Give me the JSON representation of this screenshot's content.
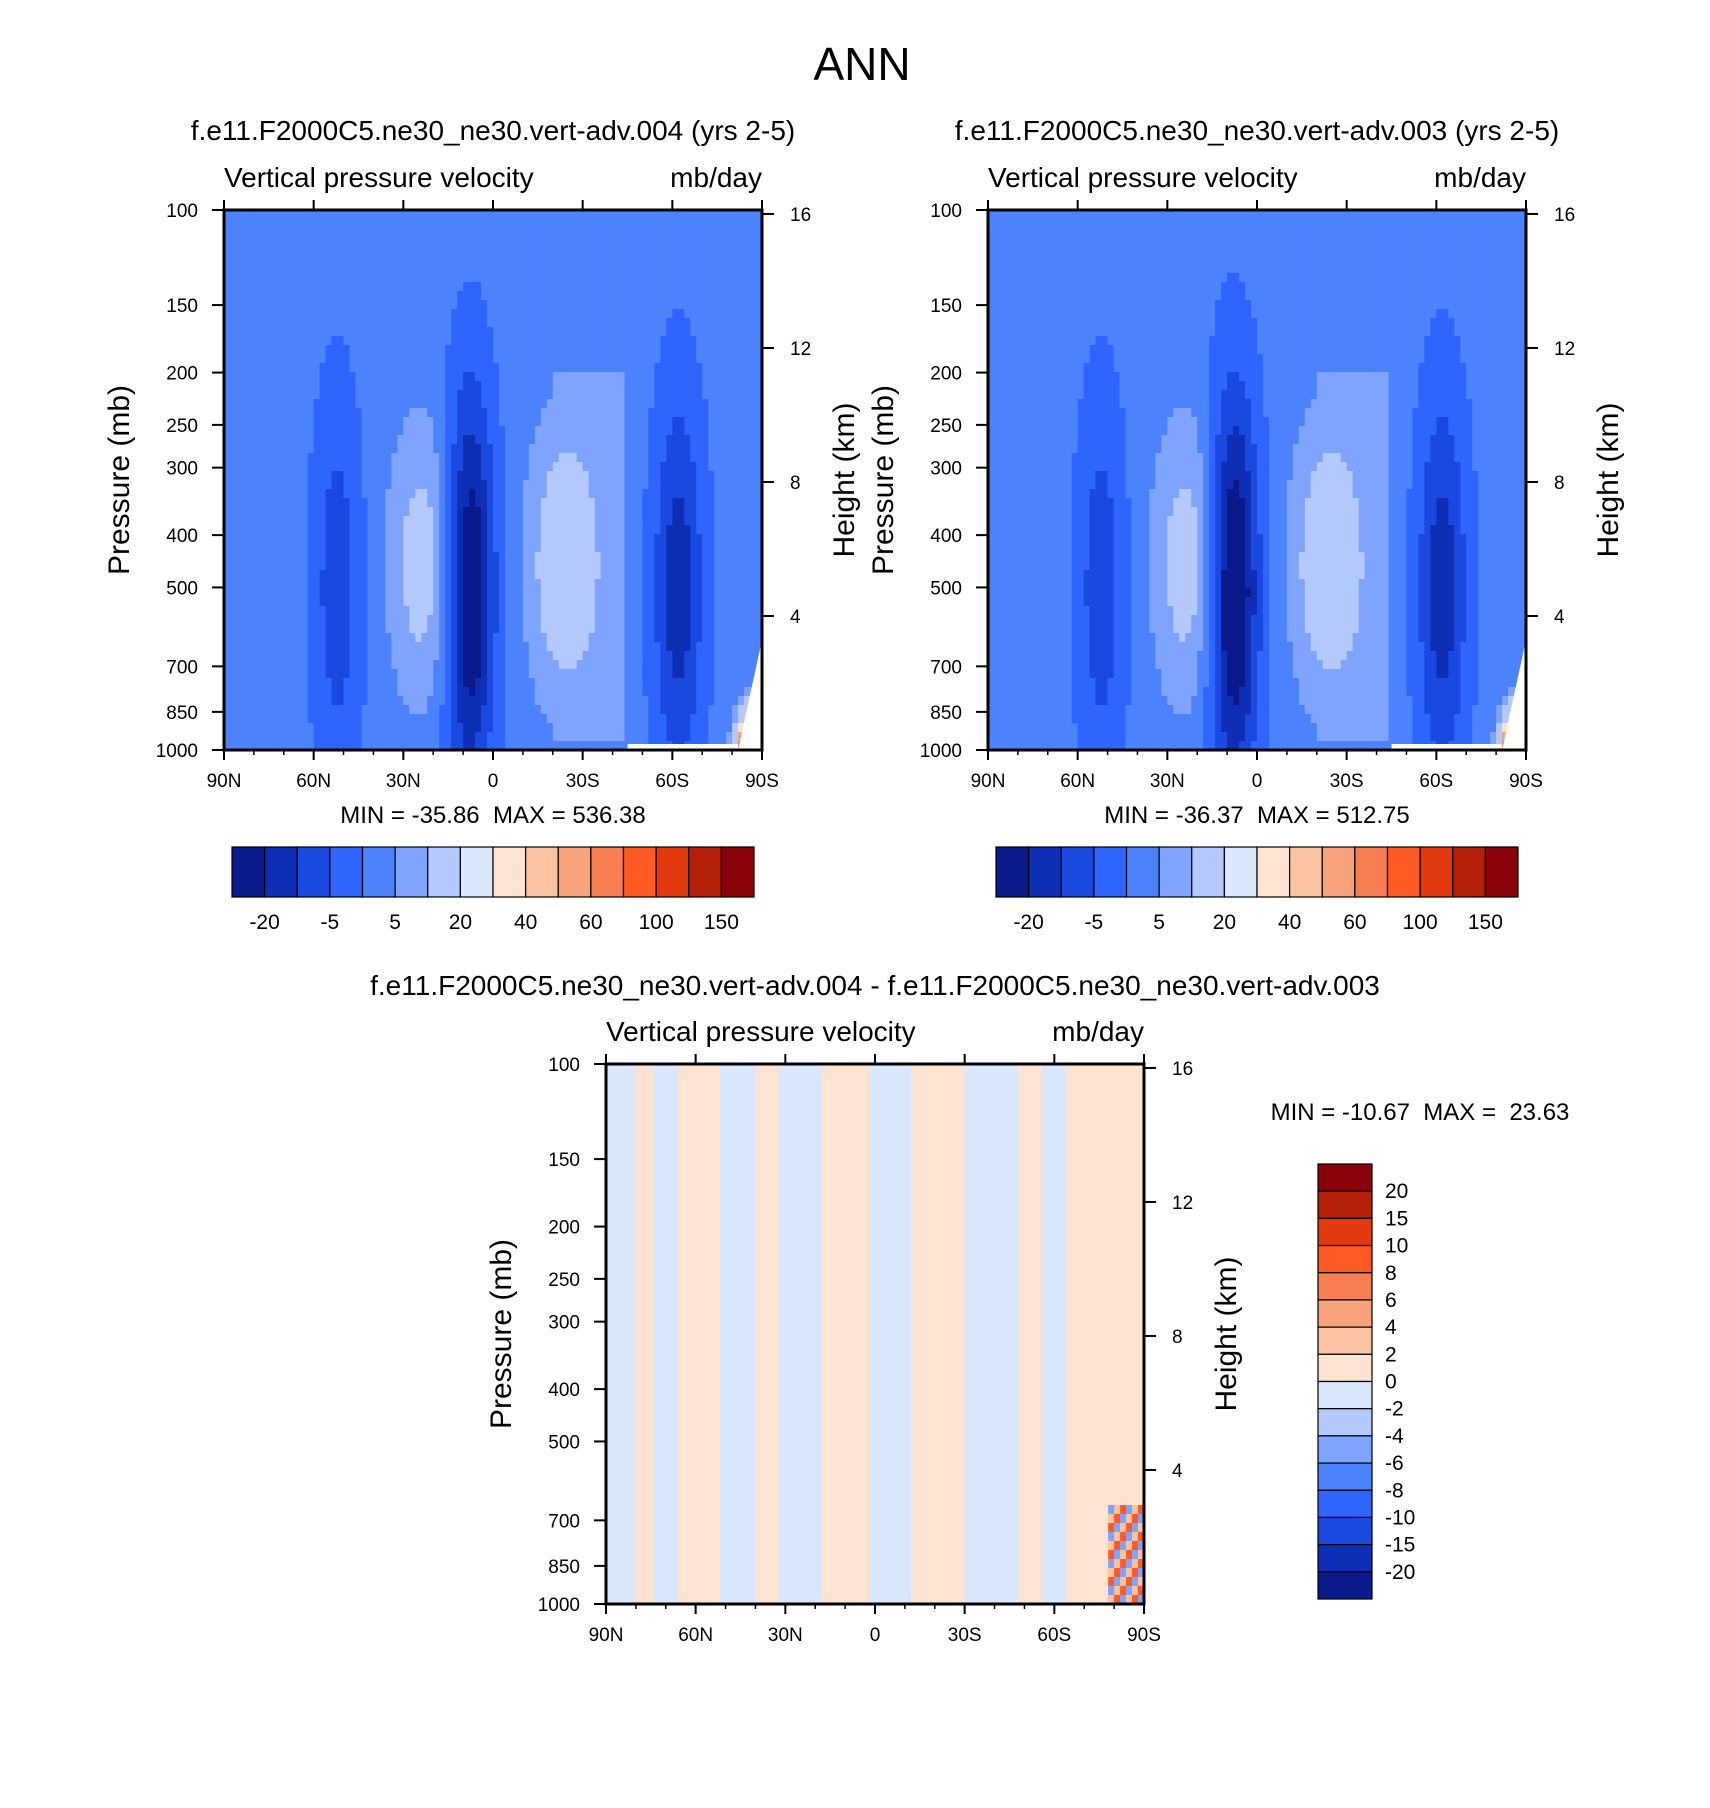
{
  "title": "ANN",
  "colors": {
    "blue_scale": [
      "#0a1a8c",
      "#0d2eb5",
      "#1a49e0",
      "#2e64ff",
      "#4d82ff",
      "#7fa4ff",
      "#b3c9ff",
      "#d9e8ff"
    ],
    "red_scale": [
      "#fde4d2",
      "#fbc3a2",
      "#f8a27c",
      "#f77e51",
      "#ff5a24",
      "#e2390e",
      "#b52008",
      "#8a0308"
    ]
  },
  "chart_data": [
    {
      "type": "heatmap",
      "title": "f.e11.F2000C5.ne30_ne30.vert-adv.004 (yrs 2-5)",
      "left_label": "Vertical pressure velocity",
      "right_label": "mb/day",
      "xlabel": "",
      "ylabel": "Pressure (mb)",
      "y2label": "Height (km)",
      "x_ticks": [
        "90N",
        "60N",
        "30N",
        "0",
        "30S",
        "60S",
        "90S"
      ],
      "y_ticks": [
        "100",
        "150",
        "200",
        "250",
        "300",
        "400",
        "500",
        "700",
        "850",
        "1000"
      ],
      "y2_ticks": [
        "16",
        "12",
        "8",
        "4"
      ],
      "xlim": [
        90,
        -90
      ],
      "ylim": [
        1000,
        100
      ],
      "y_scale": "log",
      "min_max": "MIN = -35.86  MAX = 536.38",
      "colorbar_labels": [
        "-20",
        "-5",
        "5",
        "20",
        "40",
        "60",
        "100",
        "150"
      ],
      "colorbar_orientation": "horizontal",
      "features": [
        {
          "lat": 8,
          "kind": "strong ascent",
          "value": -25
        },
        {
          "lat": -62,
          "kind": "ascent",
          "value": -15
        },
        {
          "lat": 52,
          "kind": "ascent",
          "value": -10
        },
        {
          "lat": 22,
          "kind": "subsidence",
          "value": 12
        },
        {
          "lat": -25,
          "kind": "subsidence",
          "value": 15
        },
        {
          "lat": -87,
          "kind": "surface maximum",
          "value": 150
        }
      ]
    },
    {
      "type": "heatmap",
      "title": "f.e11.F2000C5.ne30_ne30.vert-adv.003 (yrs 2-5)",
      "left_label": "Vertical pressure velocity",
      "right_label": "mb/day",
      "xlabel": "",
      "ylabel": "Pressure (mb)",
      "y2label": "Height (km)",
      "x_ticks": [
        "90N",
        "60N",
        "30N",
        "0",
        "30S",
        "60S",
        "90S"
      ],
      "y_ticks": [
        "100",
        "150",
        "200",
        "250",
        "300",
        "400",
        "500",
        "700",
        "850",
        "1000"
      ],
      "y2_ticks": [
        "16",
        "12",
        "8",
        "4"
      ],
      "xlim": [
        90,
        -90
      ],
      "ylim": [
        1000,
        100
      ],
      "y_scale": "log",
      "min_max": "MIN = -36.37  MAX = 512.75",
      "colorbar_labels": [
        "-20",
        "-5",
        "5",
        "20",
        "40",
        "60",
        "100",
        "150"
      ],
      "colorbar_orientation": "horizontal",
      "features": [
        {
          "lat": 8,
          "kind": "strong ascent",
          "value": -26
        },
        {
          "lat": -62,
          "kind": "ascent",
          "value": -15
        },
        {
          "lat": 52,
          "kind": "ascent",
          "value": -10
        },
        {
          "lat": 22,
          "kind": "subsidence",
          "value": 12
        },
        {
          "lat": -25,
          "kind": "subsidence",
          "value": 15
        },
        {
          "lat": -87,
          "kind": "surface maximum",
          "value": 150
        }
      ]
    },
    {
      "type": "heatmap",
      "title": "f.e11.F2000C5.ne30_ne30.vert-adv.004 - f.e11.F2000C5.ne30_ne30.vert-adv.003",
      "left_label": "Vertical pressure velocity",
      "right_label": "mb/day",
      "xlabel": "",
      "ylabel": "Pressure (mb)",
      "y2label": "Height (km)",
      "x_ticks": [
        "90N",
        "60N",
        "30N",
        "0",
        "30S",
        "60S",
        "90S"
      ],
      "y_ticks": [
        "100",
        "150",
        "200",
        "250",
        "300",
        "400",
        "500",
        "700",
        "850",
        "1000"
      ],
      "y2_ticks": [
        "16",
        "12",
        "8",
        "4"
      ],
      "xlim": [
        90,
        -90
      ],
      "ylim": [
        1000,
        100
      ],
      "y_scale": "log",
      "min_max": "MIN = -10.67  MAX =  23.63",
      "colorbar_labels": [
        "20",
        "15",
        "10",
        "8",
        "6",
        "4",
        "2",
        "0",
        "-2",
        "-4",
        "-6",
        "-8",
        "-10",
        "-15",
        "-20"
      ],
      "colorbar_orientation": "vertical",
      "bands": [
        {
          "lat_from": 90,
          "lat_to": 80,
          "sign": "negative"
        },
        {
          "lat_from": 80,
          "lat_to": 74,
          "sign": "positive"
        },
        {
          "lat_from": 74,
          "lat_to": 66,
          "sign": "negative"
        },
        {
          "lat_from": 66,
          "lat_to": 52,
          "sign": "positive"
        },
        {
          "lat_from": 52,
          "lat_to": 40,
          "sign": "negative"
        },
        {
          "lat_from": 40,
          "lat_to": 32,
          "sign": "positive"
        },
        {
          "lat_from": 32,
          "lat_to": 18,
          "sign": "negative"
        },
        {
          "lat_from": 18,
          "lat_to": 2,
          "sign": "positive"
        },
        {
          "lat_from": 2,
          "lat_to": -12,
          "sign": "negative"
        },
        {
          "lat_from": -12,
          "lat_to": -30,
          "sign": "positive"
        },
        {
          "lat_from": -30,
          "lat_to": -48,
          "sign": "negative"
        },
        {
          "lat_from": -48,
          "lat_to": -56,
          "sign": "positive"
        },
        {
          "lat_from": -56,
          "lat_to": -64,
          "sign": "negative"
        },
        {
          "lat_from": -64,
          "lat_to": -90,
          "sign": "positive"
        }
      ]
    }
  ]
}
